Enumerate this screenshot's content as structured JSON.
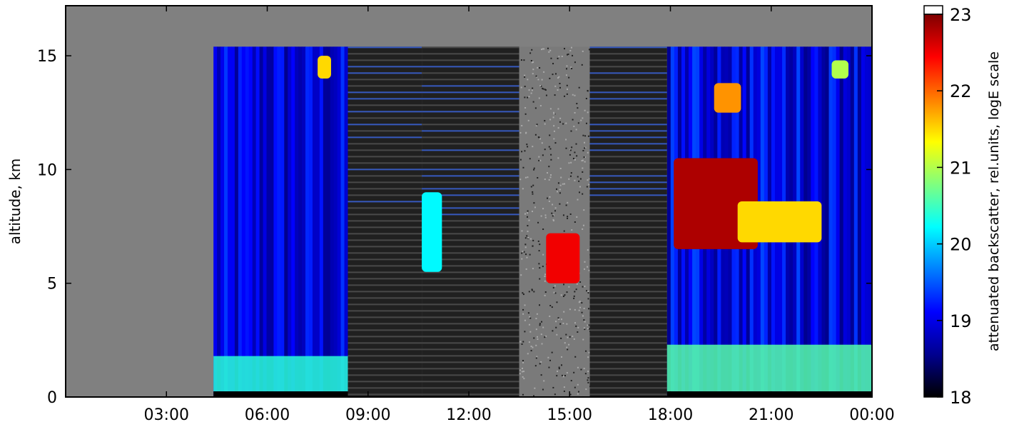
{
  "chart_data": {
    "type": "heatmap",
    "title": "",
    "xlabel": "",
    "ylabel": "altitude, km",
    "x_ticks": [
      "03:00",
      "06:00",
      "09:00",
      "12:00",
      "15:00",
      "18:00",
      "21:00",
      "00:00"
    ],
    "x_tick_hours": [
      3,
      6,
      9,
      12,
      15,
      18,
      21,
      24
    ],
    "xlim_hours": [
      0,
      24
    ],
    "y_ticks": [
      0,
      5,
      10,
      15
    ],
    "ylim": [
      0,
      17.2
    ],
    "colorbar": {
      "label": "attenuated backscatter, rel.units, logE scale",
      "ticks": [
        18,
        19,
        20,
        21,
        22,
        23
      ],
      "range": [
        18,
        23
      ],
      "colormap": [
        "#000000",
        "#00008f",
        "#0000ff",
        "#007fff",
        "#00ffff",
        "#7fff7f",
        "#ffff00",
        "#ff7f00",
        "#ff0000",
        "#7f0000"
      ],
      "over_color": "#ffffff",
      "nodata_color": "#808080"
    },
    "blocks": [
      {
        "start": 0.0,
        "end": 4.4,
        "kind": "nodata"
      },
      {
        "start": 4.4,
        "end": 8.4,
        "kind": "clear",
        "top_km": 15.4,
        "base": 18.9
      },
      {
        "start": 8.4,
        "end": 10.6,
        "kind": "noisy",
        "top_km": 15.4
      },
      {
        "start": 10.6,
        "end": 13.5,
        "kind": "noisy",
        "top_km": 15.4
      },
      {
        "start": 13.5,
        "end": 15.6,
        "kind": "grey",
        "top_km": 15.4
      },
      {
        "start": 15.6,
        "end": 17.9,
        "kind": "noisy",
        "top_km": 15.4
      },
      {
        "start": 17.9,
        "end": 24.0,
        "kind": "clear",
        "top_km": 15.4,
        "base": 19.0
      }
    ],
    "cloud_layers": [
      {
        "start": 18.1,
        "end": 20.6,
        "bottom_km": 6.5,
        "top_km": 10.5,
        "value": 22.8
      },
      {
        "start": 20.0,
        "end": 22.5,
        "bottom_km": 6.8,
        "top_km": 8.6,
        "value": 21.5
      },
      {
        "start": 19.3,
        "end": 20.1,
        "bottom_km": 12.5,
        "top_km": 13.8,
        "value": 21.8
      },
      {
        "start": 14.3,
        "end": 15.3,
        "bottom_km": 5.0,
        "top_km": 7.2,
        "value": 22.5
      },
      {
        "start": 10.6,
        "end": 11.2,
        "bottom_km": 5.5,
        "top_km": 9.0,
        "value": 20.2
      },
      {
        "start": 7.5,
        "end": 7.9,
        "bottom_km": 14.0,
        "top_km": 15.0,
        "value": 21.5
      },
      {
        "start": 22.8,
        "end": 23.3,
        "bottom_km": 14.0,
        "top_km": 14.8,
        "value": 21.0
      }
    ],
    "boundary_layer": [
      {
        "start": 4.4,
        "end": 8.4,
        "top_km": 1.8,
        "value": 20.4
      },
      {
        "start": 17.9,
        "end": 24.0,
        "top_km": 2.3,
        "value": 20.6
      }
    ]
  }
}
